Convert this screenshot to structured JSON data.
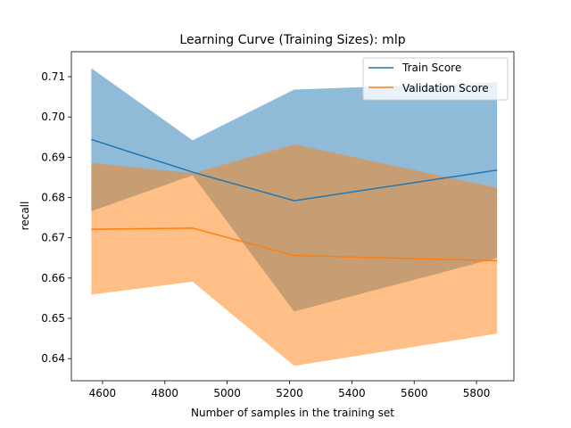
{
  "chart_data": {
    "type": "line",
    "title": "Learning Curve (Training Sizes): mlp",
    "xlabel": "Number of samples in the training set",
    "ylabel": "recall",
    "xlim": [
      4500,
      5920
    ],
    "ylim": [
      0.6345,
      0.7162
    ],
    "xticks": [
      4600,
      4800,
      5000,
      5200,
      5400,
      5600,
      5800
    ],
    "yticks": [
      0.64,
      0.65,
      0.66,
      0.67,
      0.68,
      0.69,
      0.7,
      0.71
    ],
    "x": [
      4564,
      4889,
      5215,
      5866
    ],
    "series": [
      {
        "name": "Train Score",
        "color": "#1f77b4",
        "values": [
          0.6944,
          0.6863,
          0.6792,
          0.6868
        ],
        "band_upper": [
          0.7121,
          0.6942,
          0.7068,
          0.7086
        ],
        "band_lower": [
          0.6766,
          0.6855,
          0.6517,
          0.665
        ]
      },
      {
        "name": "Validation Score",
        "color": "#ff7f0e",
        "values": [
          0.6721,
          0.6724,
          0.6656,
          0.6643
        ],
        "band_upper": [
          0.6886,
          0.686,
          0.6932,
          0.6824
        ],
        "band_lower": [
          0.6559,
          0.6591,
          0.6382,
          0.6462
        ]
      }
    ],
    "legend": {
      "placement": "top-right",
      "entries": [
        "Train Score",
        "Validation Score"
      ]
    },
    "grid": false
  }
}
